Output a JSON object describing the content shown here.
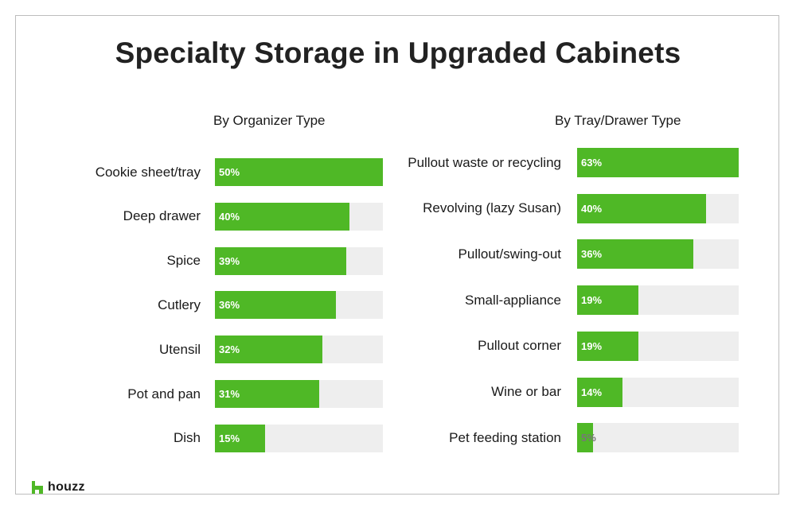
{
  "chart_data": [
    {
      "type": "bar",
      "orientation": "horizontal",
      "title": "Specialty Storage in Upgraded Cabinets",
      "subtitle": "By Organizer Type",
      "categories": [
        "Cookie sheet/tray",
        "Deep drawer",
        "Spice",
        "Cutlery",
        "Utensil",
        "Pot and pan",
        "Dish"
      ],
      "values": [
        50,
        40,
        39,
        36,
        32,
        31,
        15
      ],
      "value_labels": [
        "50%",
        "40%",
        "39%",
        "36%",
        "32%",
        "31%",
        "15%"
      ],
      "xlim": [
        0,
        100
      ],
      "unit": "%",
      "grid": false,
      "legend": "none"
    },
    {
      "type": "bar",
      "orientation": "horizontal",
      "title": "Specialty Storage in Upgraded Cabinets",
      "subtitle": "By Tray/Drawer Type",
      "categories": [
        "Pullout waste or recycling",
        "Revolving (lazy Susan)",
        "Pullout/swing-out",
        "Small-appliance",
        "Pullout corner",
        "Wine or bar",
        "Pet feeding station"
      ],
      "values": [
        63,
        40,
        36,
        19,
        19,
        14,
        5
      ],
      "value_labels": [
        "63%",
        "40%",
        "36%",
        "19%",
        "19%",
        "14%",
        "5%"
      ],
      "xlim": [
        0,
        100
      ],
      "unit": "%",
      "grid": false,
      "legend": "none"
    }
  ],
  "page": {
    "title": "Specialty Storage in Upgraded Cabinets",
    "left_heading": "By Organizer Type",
    "right_heading": "By Tray/Drawer Type",
    "brand": "houzz"
  },
  "colors": {
    "bar": "#4fb826",
    "track": "#eeeeee",
    "logo": "#4fb826"
  },
  "icons": {
    "logo": "houzz-h-logo-icon"
  }
}
